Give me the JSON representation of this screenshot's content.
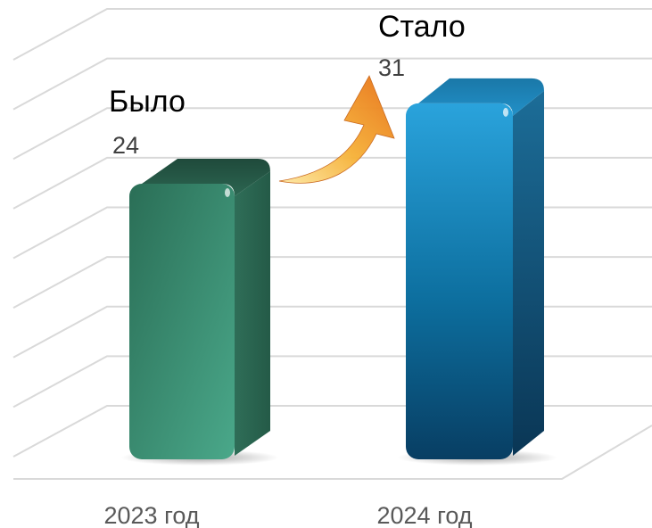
{
  "chart_data": {
    "type": "bar",
    "categories": [
      "2023 год",
      "2024 год"
    ],
    "values": [
      24,
      31
    ],
    "ylim": [
      0,
      40
    ],
    "grid": true,
    "annotations": [
      {
        "title": "Было",
        "value": "24"
      },
      {
        "title": "Стало",
        "value": "31"
      }
    ],
    "colors": {
      "bar_2023": "#3a9a7a",
      "bar_2024": "#1a86be",
      "arrow": "#f28a1e",
      "grid": "#d9d9d9",
      "label": "#595959"
    }
  }
}
